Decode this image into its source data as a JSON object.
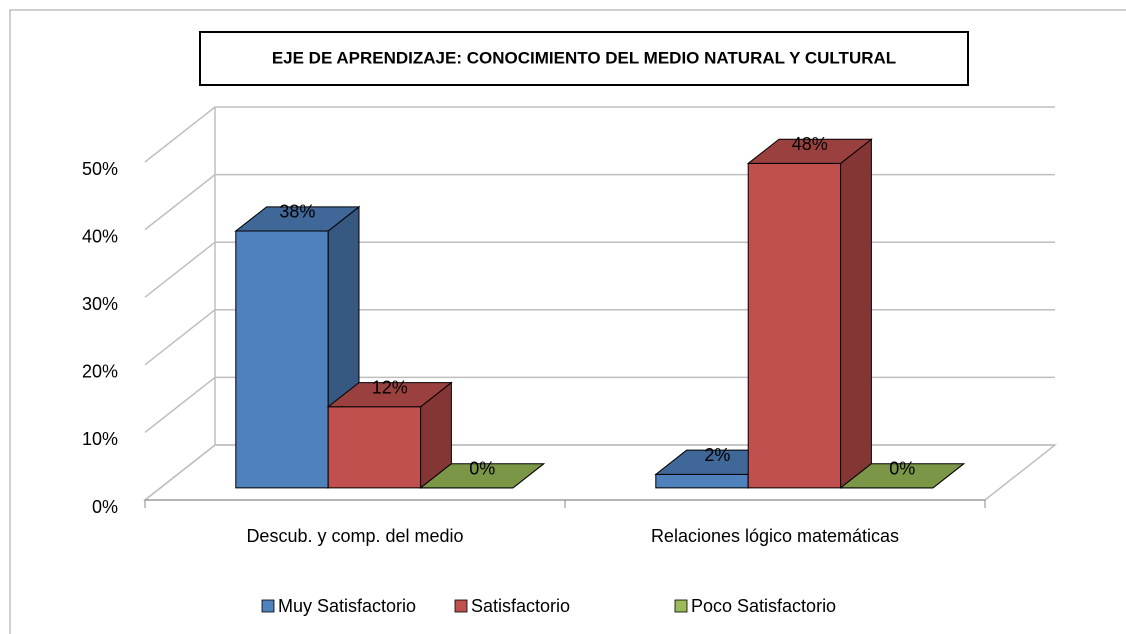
{
  "chart_data": {
    "type": "bar3d",
    "title": "EJE DE APRENDIZAJE: CONOCIMIENTO DEL MEDIO NATURAL Y CULTURAL",
    "categories": [
      "Descub. y comp. del medio",
      "Relaciones lógico matemáticas"
    ],
    "series": [
      {
        "name": "Muy Satisfactorio",
        "color": "#4f81bd",
        "values": [
          38,
          2
        ],
        "value_labels": [
          "38%",
          "2%"
        ]
      },
      {
        "name": "Satisfactorio",
        "color": "#c0504d",
        "values": [
          12,
          48
        ],
        "value_labels": [
          "12%",
          "48%"
        ]
      },
      {
        "name": "Poco Satisfactorio",
        "color": "#9bbb59",
        "values": [
          0,
          0
        ],
        "value_labels": [
          "0%",
          "0%"
        ]
      }
    ],
    "ylim": [
      0,
      50
    ],
    "yticks": [
      {
        "value": 0,
        "label": "0%"
      },
      {
        "value": 10,
        "label": "10%"
      },
      {
        "value": 20,
        "label": "20%"
      },
      {
        "value": 30,
        "label": "30%"
      },
      {
        "value": 40,
        "label": "40%"
      },
      {
        "value": 50,
        "label": "50%"
      }
    ],
    "grid": true,
    "legend": "bottom"
  }
}
